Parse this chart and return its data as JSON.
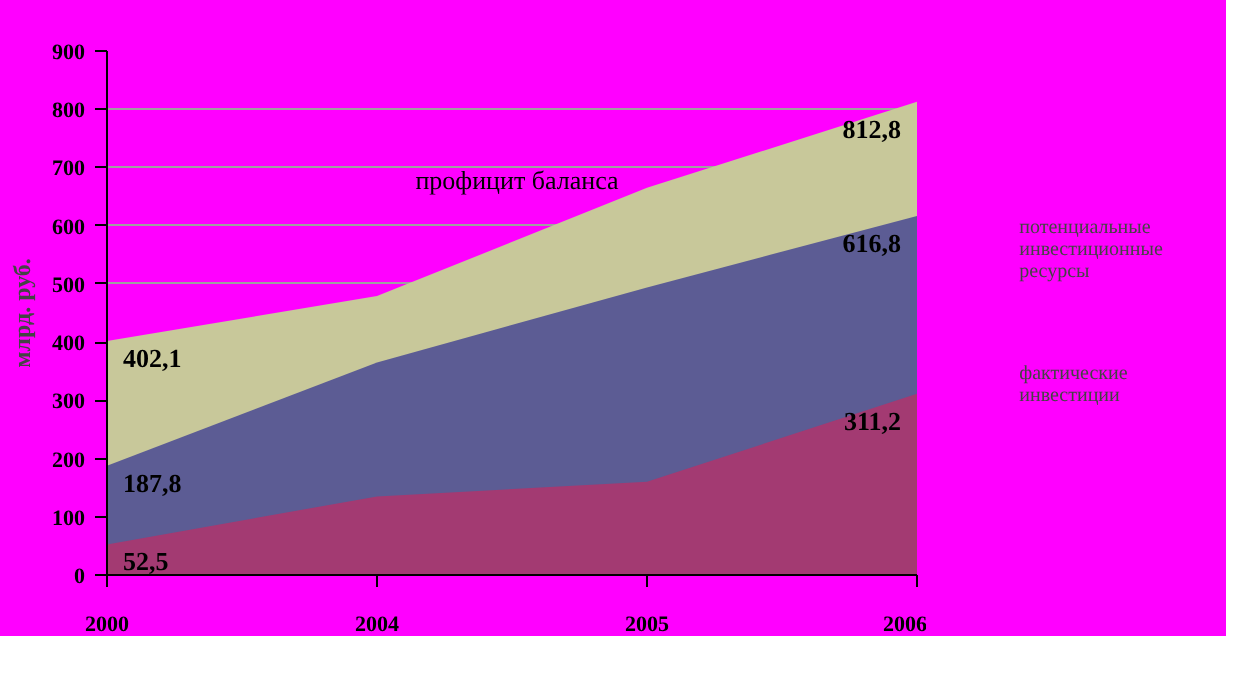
{
  "chart_data": {
    "type": "area",
    "categories": [
      "2000",
      "2004",
      "2005",
      "2006"
    ],
    "ylabel": "млрд. руб.",
    "ylim": [
      0,
      900
    ],
    "yticks": [
      0,
      100,
      200,
      300,
      400,
      500,
      600,
      700,
      800,
      900
    ],
    "grid": "y",
    "legend": "right",
    "series": [
      {
        "color": "#c8c89a",
        "values": [
          402.1,
          479,
          665,
          812.8
        ],
        "value_labels": [
          "402,1",
          null,
          null,
          "812,8"
        ]
      },
      {
        "name": "потенциальные инвестиционные ресурсы",
        "color": "#5c5c94",
        "values": [
          187.8,
          365,
          494,
          616.8
        ],
        "value_labels": [
          "187,8",
          null,
          null,
          "616,8"
        ]
      },
      {
        "name": "фактические инвестиции",
        "color": "#a33a72",
        "values": [
          52.5,
          135,
          160,
          311.2
        ],
        "value_labels": [
          "52,5",
          null,
          null,
          "311,2"
        ]
      }
    ],
    "annotations": [
      "профицит баланса"
    ]
  }
}
